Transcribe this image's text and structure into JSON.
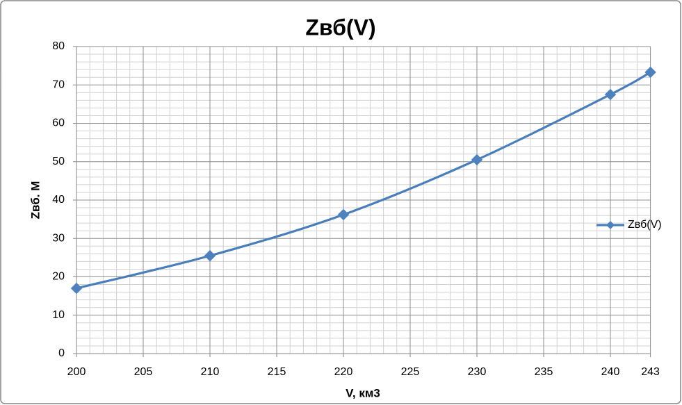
{
  "chart_data": {
    "type": "line",
    "title": "Zвб(V)",
    "x_label": "V, км3",
    "y_label": "Zвб. М",
    "x": [
      200,
      210,
      220,
      230,
      240,
      243
    ],
    "series": [
      {
        "name": "Zвб(V)",
        "color": "#4a7ebb",
        "values": [
          17,
          25.5,
          36.2,
          50.5,
          67.5,
          73.3
        ]
      }
    ],
    "xlim": [
      200,
      243
    ],
    "xticks": [
      200,
      205,
      210,
      215,
      220,
      225,
      230,
      235,
      240,
      243
    ],
    "ylim": [
      0,
      80
    ],
    "yticks": [
      0,
      10,
      20,
      30,
      40,
      50,
      60,
      70,
      80
    ],
    "grid": true,
    "minor_grid": true,
    "smooth": true,
    "marker": "diamond",
    "legend": "right"
  }
}
